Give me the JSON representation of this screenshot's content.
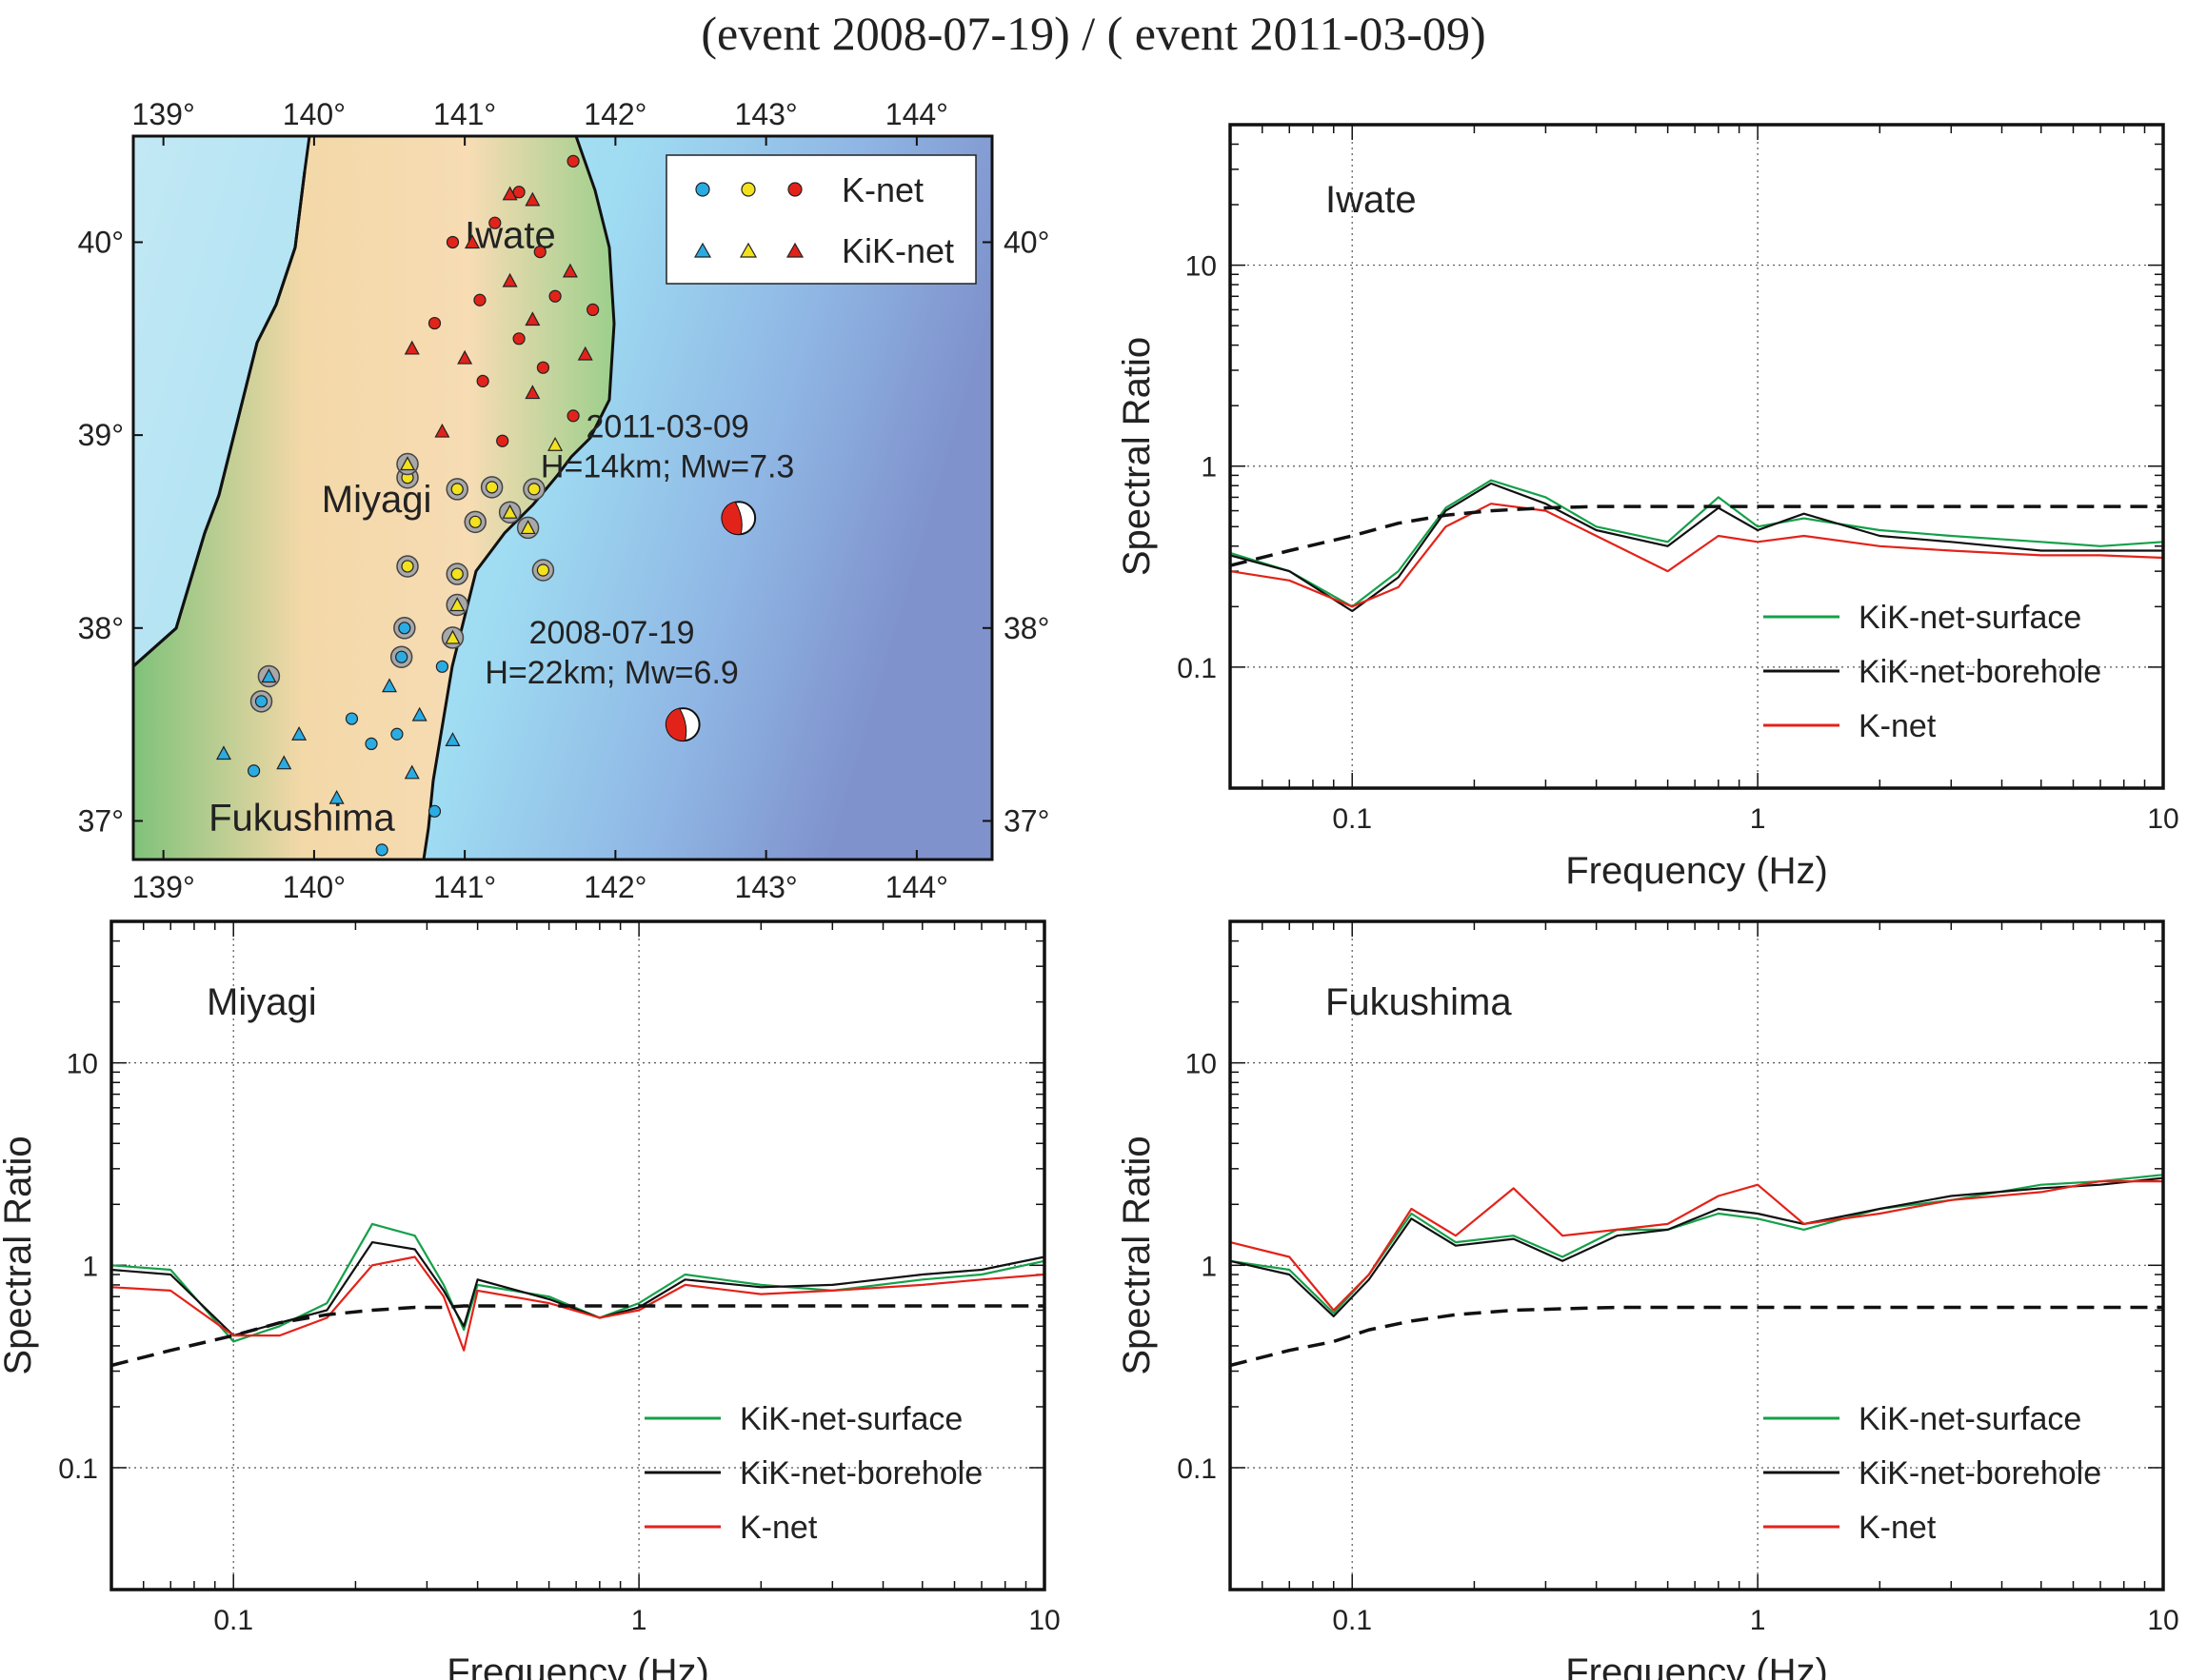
{
  "title": "(event 2008-07-19) / ( event 2011-03-09)",
  "map": {
    "lon_ticks": [
      "139°",
      "140°",
      "141°",
      "142°",
      "143°",
      "144°"
    ],
    "lon_values": [
      139,
      140,
      141,
      142,
      143,
      144
    ],
    "lat_ticks_left": [
      "37°",
      "38°",
      "39°",
      "40°"
    ],
    "lat_ticks_right": [
      "37°",
      "38°",
      "40°"
    ],
    "lat_values_left": [
      37,
      38,
      39,
      40
    ],
    "lat_values_right": [
      37,
      38,
      40
    ],
    "xlim": [
      138.8,
      144.5
    ],
    "ylim": [
      36.8,
      40.55
    ],
    "region_labels": [
      {
        "name": "Iwate",
        "lon": 141.0,
        "lat": 39.97
      },
      {
        "name": "Miyagi",
        "lon": 140.05,
        "lat": 38.6
      },
      {
        "name": "Fukushima",
        "lon": 139.3,
        "lat": 36.95
      }
    ],
    "legend": {
      "knet": "K-net",
      "kiknet": "KiK-net"
    },
    "station_colors": {
      "iwate": "#e2231a",
      "miyagi": "#f2e11d",
      "fukushima": "#2aace2"
    },
    "events": [
      {
        "date": "2011-03-09",
        "info": "H=14km; Mw=7.3",
        "lon": 142.82,
        "lat": 38.57
      },
      {
        "date": "2008-07-19",
        "info": "H=22km; Mw=6.9",
        "lon": 142.45,
        "lat": 37.5
      }
    ],
    "stations_knet": [
      {
        "lon": 141.36,
        "lat": 40.26,
        "c": "iwate"
      },
      {
        "lon": 141.2,
        "lat": 40.1,
        "c": "iwate"
      },
      {
        "lon": 140.92,
        "lat": 40.0,
        "c": "iwate"
      },
      {
        "lon": 141.5,
        "lat": 39.95,
        "c": "iwate"
      },
      {
        "lon": 141.72,
        "lat": 40.42,
        "c": "iwate"
      },
      {
        "lon": 141.1,
        "lat": 39.7,
        "c": "iwate"
      },
      {
        "lon": 141.6,
        "lat": 39.72,
        "c": "iwate"
      },
      {
        "lon": 140.8,
        "lat": 39.58,
        "c": "iwate"
      },
      {
        "lon": 141.36,
        "lat": 39.5,
        "c": "iwate"
      },
      {
        "lon": 141.12,
        "lat": 39.28,
        "c": "iwate"
      },
      {
        "lon": 141.52,
        "lat": 39.35,
        "c": "iwate"
      },
      {
        "lon": 141.85,
        "lat": 39.65,
        "c": "iwate"
      },
      {
        "lon": 141.25,
        "lat": 38.97,
        "c": "iwate"
      },
      {
        "lon": 141.72,
        "lat": 39.1,
        "c": "iwate"
      },
      {
        "lon": 140.62,
        "lat": 38.78,
        "c": "miyagi",
        "ring": true
      },
      {
        "lon": 140.95,
        "lat": 38.72,
        "c": "miyagi",
        "ring": true
      },
      {
        "lon": 141.18,
        "lat": 38.73,
        "c": "miyagi",
        "ring": true
      },
      {
        "lon": 141.07,
        "lat": 38.55,
        "c": "miyagi",
        "ring": true
      },
      {
        "lon": 140.62,
        "lat": 38.32,
        "c": "miyagi",
        "ring": true
      },
      {
        "lon": 140.95,
        "lat": 38.28,
        "c": "miyagi",
        "ring": true
      },
      {
        "lon": 141.52,
        "lat": 38.3,
        "c": "miyagi",
        "ring": true
      },
      {
        "lon": 141.46,
        "lat": 38.72,
        "c": "miyagi",
        "ring": true
      },
      {
        "lon": 140.6,
        "lat": 38.0,
        "c": "fukushima",
        "ring": true
      },
      {
        "lon": 140.58,
        "lat": 37.85,
        "c": "fukushima",
        "ring": true
      },
      {
        "lon": 139.65,
        "lat": 37.62,
        "c": "fukushima",
        "ring": true
      },
      {
        "lon": 140.25,
        "lat": 37.53,
        "c": "fukushima"
      },
      {
        "lon": 140.55,
        "lat": 37.45,
        "c": "fukushima"
      },
      {
        "lon": 140.85,
        "lat": 37.8,
        "c": "fukushima"
      },
      {
        "lon": 139.6,
        "lat": 37.26,
        "c": "fukushima"
      },
      {
        "lon": 140.38,
        "lat": 37.4,
        "c": "fukushima"
      },
      {
        "lon": 140.8,
        "lat": 37.05,
        "c": "fukushima"
      },
      {
        "lon": 140.45,
        "lat": 36.85,
        "c": "fukushima"
      }
    ],
    "stations_kik": [
      {
        "lon": 141.45,
        "lat": 40.22,
        "c": "iwate"
      },
      {
        "lon": 141.3,
        "lat": 40.25,
        "c": "iwate"
      },
      {
        "lon": 141.05,
        "lat": 40.0,
        "c": "iwate"
      },
      {
        "lon": 141.3,
        "lat": 39.8,
        "c": "iwate"
      },
      {
        "lon": 141.7,
        "lat": 39.85,
        "c": "iwate"
      },
      {
        "lon": 141.45,
        "lat": 39.6,
        "c": "iwate"
      },
      {
        "lon": 140.65,
        "lat": 39.45,
        "c": "iwate"
      },
      {
        "lon": 141.0,
        "lat": 39.4,
        "c": "iwate"
      },
      {
        "lon": 141.45,
        "lat": 39.22,
        "c": "iwate"
      },
      {
        "lon": 141.8,
        "lat": 39.42,
        "c": "iwate"
      },
      {
        "lon": 140.85,
        "lat": 39.02,
        "c": "iwate"
      },
      {
        "lon": 141.6,
        "lat": 38.95,
        "c": "miyagi"
      },
      {
        "lon": 140.62,
        "lat": 38.85,
        "c": "miyagi",
        "ring": true
      },
      {
        "lon": 141.3,
        "lat": 38.6,
        "c": "miyagi",
        "ring": true
      },
      {
        "lon": 140.95,
        "lat": 38.12,
        "c": "miyagi",
        "ring": true
      },
      {
        "lon": 141.42,
        "lat": 38.52,
        "c": "miyagi",
        "ring": true
      },
      {
        "lon": 140.92,
        "lat": 37.95,
        "c": "miyagi",
        "ring": true
      },
      {
        "lon": 139.7,
        "lat": 37.75,
        "c": "fukushima",
        "ring": true
      },
      {
        "lon": 140.5,
        "lat": 37.7,
        "c": "fukushima"
      },
      {
        "lon": 139.9,
        "lat": 37.45,
        "c": "fukushima"
      },
      {
        "lon": 140.7,
        "lat": 37.55,
        "c": "fukushima"
      },
      {
        "lon": 139.8,
        "lat": 37.3,
        "c": "fukushima"
      },
      {
        "lon": 140.15,
        "lat": 37.12,
        "c": "fukushima"
      },
      {
        "lon": 140.65,
        "lat": 37.25,
        "c": "fukushima"
      },
      {
        "lon": 139.4,
        "lat": 37.35,
        "c": "fukushima"
      },
      {
        "lon": 140.92,
        "lat": 37.42,
        "c": "fukushima"
      }
    ]
  },
  "chart_data": [
    {
      "type": "line",
      "panel_label": "Iwate",
      "xlabel": "Frequency (Hz)",
      "ylabel": "Spectral Ratio",
      "xscale": "log",
      "yscale": "log",
      "xlim": [
        0.05,
        10
      ],
      "ylim": [
        0.025,
        50
      ],
      "xticks": [
        0.1,
        1,
        10
      ],
      "xtick_labels": [
        "0.1",
        "1",
        "10"
      ],
      "yticks": [
        0.1,
        1,
        10
      ],
      "ytick_labels": [
        "0.1",
        "1",
        "10"
      ],
      "grid": true,
      "legend_position": "bottom-right",
      "x": [
        0.05,
        0.07,
        0.1,
        0.13,
        0.17,
        0.22,
        0.3,
        0.4,
        0.6,
        0.8,
        1.0,
        1.3,
        2,
        3,
        5,
        7,
        10
      ],
      "series": [
        {
          "name": "KiK-net-surface",
          "color": "#15a04a",
          "values": [
            0.37,
            0.3,
            0.2,
            0.3,
            0.62,
            0.85,
            0.7,
            0.5,
            0.42,
            0.7,
            0.5,
            0.55,
            0.48,
            0.45,
            0.42,
            0.4,
            0.42
          ]
        },
        {
          "name": "KiK-net-borehole",
          "color": "#111111",
          "values": [
            0.36,
            0.3,
            0.19,
            0.28,
            0.6,
            0.82,
            0.65,
            0.48,
            0.4,
            0.62,
            0.48,
            0.58,
            0.45,
            0.42,
            0.38,
            0.38,
            0.38
          ]
        },
        {
          "name": "K-net",
          "color": "#e2231a",
          "values": [
            0.3,
            0.27,
            0.2,
            0.25,
            0.5,
            0.65,
            0.6,
            0.45,
            0.3,
            0.45,
            0.42,
            0.45,
            0.4,
            0.38,
            0.36,
            0.36,
            0.35
          ]
        },
        {
          "name": "",
          "color": "#111111",
          "dashed": true,
          "values": [
            0.32,
            0.38,
            0.45,
            0.52,
            0.57,
            0.6,
            0.62,
            0.63,
            0.63,
            0.63,
            0.63,
            0.63,
            0.63,
            0.63,
            0.63,
            0.63,
            0.63
          ]
        }
      ]
    },
    {
      "type": "line",
      "panel_label": "Miyagi",
      "xlabel": "Frequency (Hz)",
      "ylabel": "Spectral Ratio",
      "xscale": "log",
      "yscale": "log",
      "xlim": [
        0.05,
        10
      ],
      "ylim": [
        0.025,
        50
      ],
      "xticks": [
        0.1,
        1,
        10
      ],
      "xtick_labels": [
        "0.1",
        "1",
        "10"
      ],
      "yticks": [
        0.1,
        1,
        10
      ],
      "ytick_labels": [
        "0.1",
        "1",
        "10"
      ],
      "grid": true,
      "legend_position": "bottom-right",
      "x": [
        0.05,
        0.07,
        0.1,
        0.13,
        0.17,
        0.22,
        0.28,
        0.33,
        0.37,
        0.4,
        0.6,
        0.8,
        1.0,
        1.3,
        2,
        3,
        5,
        7,
        10
      ],
      "series": [
        {
          "name": "KiK-net-surface",
          "color": "#15a04a",
          "values": [
            1.0,
            0.95,
            0.42,
            0.5,
            0.65,
            1.6,
            1.4,
            0.8,
            0.48,
            0.8,
            0.7,
            0.55,
            0.65,
            0.9,
            0.8,
            0.75,
            0.85,
            0.9,
            1.05
          ]
        },
        {
          "name": "KiK-net-borehole",
          "color": "#111111",
          "values": [
            0.95,
            0.9,
            0.45,
            0.52,
            0.6,
            1.3,
            1.2,
            0.75,
            0.5,
            0.85,
            0.68,
            0.55,
            0.62,
            0.85,
            0.78,
            0.8,
            0.9,
            0.95,
            1.1
          ]
        },
        {
          "name": "K-net",
          "color": "#e2231a",
          "values": [
            0.78,
            0.75,
            0.45,
            0.45,
            0.55,
            1.0,
            1.1,
            0.7,
            0.38,
            0.75,
            0.65,
            0.55,
            0.6,
            0.8,
            0.72,
            0.75,
            0.8,
            0.85,
            0.9
          ]
        },
        {
          "name": "",
          "color": "#111111",
          "dashed": true,
          "values": [
            0.32,
            0.38,
            0.45,
            0.52,
            0.57,
            0.6,
            0.62,
            0.62,
            0.63,
            0.63,
            0.63,
            0.63,
            0.63,
            0.63,
            0.63,
            0.63,
            0.63,
            0.63,
            0.63
          ]
        }
      ]
    },
    {
      "type": "line",
      "panel_label": "Fukushima",
      "xlabel": "Frequency (Hz)",
      "ylabel": "Spectral Ratio",
      "xscale": "log",
      "yscale": "log",
      "xlim": [
        0.05,
        10
      ],
      "ylim": [
        0.025,
        50
      ],
      "xticks": [
        0.1,
        1,
        10
      ],
      "xtick_labels": [
        "0.1",
        "1",
        "10"
      ],
      "yticks": [
        0.1,
        1,
        10
      ],
      "ytick_labels": [
        "0.1",
        "1",
        "10"
      ],
      "grid": true,
      "legend_position": "bottom-right",
      "x": [
        0.05,
        0.07,
        0.09,
        0.11,
        0.14,
        0.18,
        0.25,
        0.33,
        0.45,
        0.6,
        0.8,
        1.0,
        1.3,
        2,
        3,
        5,
        7,
        10
      ],
      "series": [
        {
          "name": "KiK-net-surface",
          "color": "#15a04a",
          "values": [
            1.05,
            0.95,
            0.58,
            0.9,
            1.8,
            1.3,
            1.4,
            1.1,
            1.5,
            1.5,
            1.8,
            1.7,
            1.5,
            1.9,
            2.1,
            2.5,
            2.6,
            2.8
          ]
        },
        {
          "name": "KiK-net-borehole",
          "color": "#111111",
          "values": [
            1.05,
            0.9,
            0.56,
            0.85,
            1.7,
            1.25,
            1.35,
            1.05,
            1.4,
            1.5,
            1.9,
            1.8,
            1.6,
            1.9,
            2.2,
            2.4,
            2.5,
            2.7
          ]
        },
        {
          "name": "K-net",
          "color": "#e2231a",
          "values": [
            1.3,
            1.1,
            0.6,
            0.9,
            1.9,
            1.4,
            2.4,
            1.4,
            1.5,
            1.6,
            2.2,
            2.5,
            1.6,
            1.8,
            2.1,
            2.3,
            2.6,
            2.6
          ]
        },
        {
          "name": "",
          "color": "#111111",
          "dashed": true,
          "values": [
            0.32,
            0.38,
            0.42,
            0.48,
            0.53,
            0.57,
            0.6,
            0.61,
            0.62,
            0.62,
            0.62,
            0.62,
            0.62,
            0.62,
            0.62,
            0.62,
            0.62,
            0.62
          ]
        }
      ]
    }
  ]
}
